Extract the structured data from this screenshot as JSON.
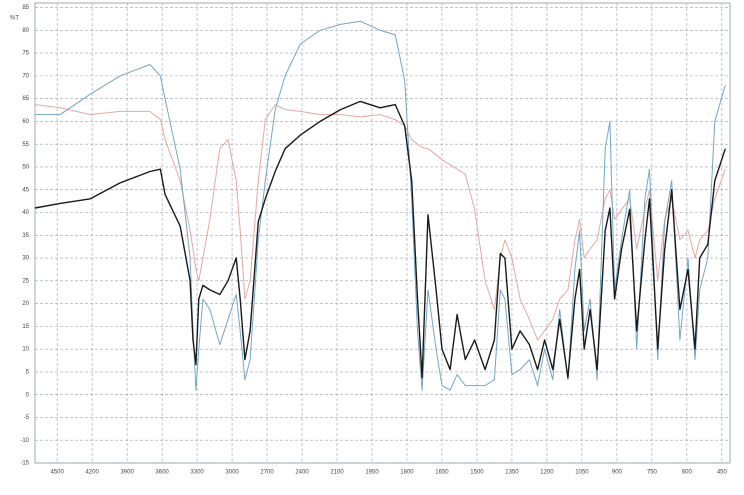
{
  "chart_data": {
    "type": "line",
    "y_label": "%T",
    "x": [
      4690,
      4475,
      4215,
      3960,
      3705,
      3615,
      3575,
      3445,
      3360,
      3335,
      3310,
      3285,
      3250,
      3190,
      3105,
      3035,
      2965,
      2930,
      2890,
      2845,
      2775,
      2715,
      2630,
      2545,
      2415,
      2245,
      2085,
      2000,
      1915,
      1850,
      1810,
      1780,
      1755,
      1735,
      1710,
      1675,
      1650,
      1615,
      1585,
      1550,
      1510,
      1465,
      1425,
      1400,
      1380,
      1350,
      1315,
      1275,
      1240,
      1210,
      1175,
      1145,
      1110,
      1080,
      1060,
      1040,
      1015,
      985,
      950,
      930,
      910,
      880,
      845,
      815,
      780,
      760,
      725,
      695,
      665,
      630,
      595,
      565,
      545,
      510,
      480,
      435
    ],
    "series": [
      {
        "color": "#e3a9a3",
        "values": [
          63.7,
          63,
          61.5,
          62.2,
          62.2,
          60.4,
          56,
          47,
          36,
          32,
          27.5,
          25,
          30,
          38.5,
          54,
          56,
          47,
          36,
          21,
          25,
          47,
          60.4,
          63.7,
          62.6,
          62.2,
          61.5,
          61.5,
          61,
          61.5,
          60.4,
          59,
          56,
          55,
          54.3,
          54,
          52.7,
          51.6,
          50.5,
          49.5,
          48.4,
          40.7,
          25,
          18.7,
          30,
          34,
          30,
          21,
          16.5,
          12,
          14,
          16.5,
          21,
          23,
          34,
          38.5,
          30,
          32,
          34,
          43,
          45,
          38.5,
          40.7,
          43,
          32,
          40.7,
          45,
          25,
          38.5,
          43,
          34,
          36,
          30,
          34,
          36,
          43,
          49.5
        ]
      },
      {
        "color": "#74a7c4",
        "values": [
          61.5,
          61.5,
          66,
          70,
          72.5,
          70,
          65,
          49.5,
          30,
          14,
          1,
          10,
          21,
          18.7,
          11,
          16.5,
          22,
          14,
          3.3,
          7.7,
          34,
          47,
          62.6,
          70,
          77,
          80,
          81.3,
          82,
          80,
          79,
          69,
          43,
          14,
          1,
          23,
          10,
          2,
          1,
          4.4,
          2,
          2,
          2,
          3.3,
          23,
          21,
          4.4,
          5.5,
          7.7,
          2,
          10,
          3.3,
          18.7,
          3.3,
          27.5,
          36,
          14,
          21,
          3.3,
          54,
          60,
          23,
          34,
          45,
          10,
          43,
          49.5,
          7.7,
          38,
          47,
          12,
          30,
          7.7,
          23,
          30,
          60,
          68
        ]
      },
      {
        "color": "#1a1a1a",
        "values": [
          41,
          42,
          43,
          46.5,
          49,
          49.5,
          44,
          37,
          25,
          12,
          6.6,
          21,
          24,
          23,
          22,
          25,
          30,
          21,
          7.7,
          14,
          38,
          43,
          49,
          54,
          57,
          60,
          62.6,
          64.4,
          63,
          63.7,
          59,
          47,
          21,
          3.7,
          39.5,
          23,
          10,
          5.5,
          17.6,
          7.7,
          12,
          5.5,
          12,
          31,
          30,
          10,
          14,
          11,
          5.5,
          12,
          5.5,
          16.5,
          3.7,
          21,
          27.5,
          10,
          18.7,
          5.5,
          36,
          41,
          21,
          32,
          40.7,
          14,
          34,
          43,
          10,
          32,
          45,
          18.7,
          27.5,
          10,
          30,
          33,
          47,
          54
        ]
      }
    ],
    "xlim": [
      4690,
      415
    ],
    "xticks": [
      4500,
      4200,
      3900,
      3600,
      3300,
      3000,
      2700,
      2400,
      2100,
      1950,
      1800,
      1650,
      1500,
      1350,
      1200,
      1050,
      900,
      750,
      600,
      450
    ],
    "ylim": [
      -15,
      86
    ],
    "yticks": [
      -15,
      -10,
      -5,
      0,
      5,
      10,
      15,
      20,
      25,
      30,
      35,
      40,
      45,
      50,
      55,
      60,
      65,
      70,
      75,
      80,
      85
    ],
    "grid": true
  }
}
